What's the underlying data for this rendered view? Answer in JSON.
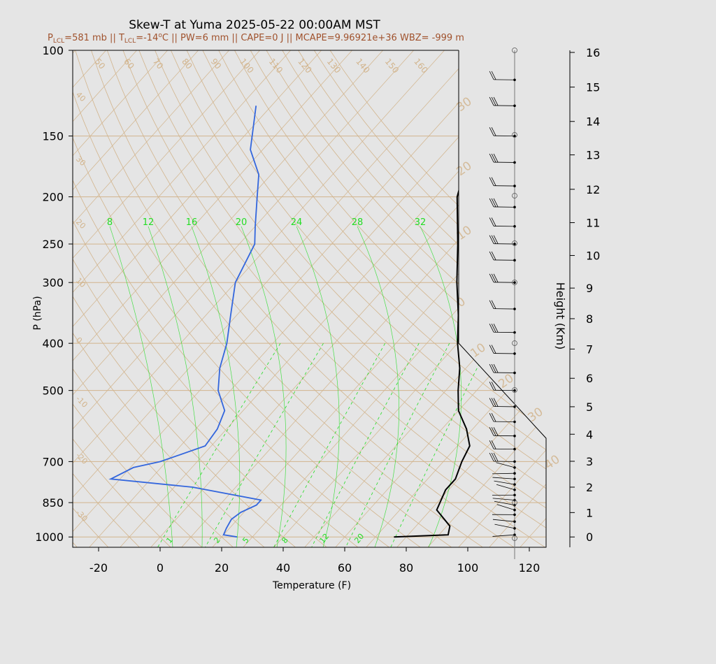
{
  "title": "Skew-T at Yuma 2025-05-22 00:00AM MST",
  "subtitle": {
    "plcl": "P",
    "plcl_sub": "LCL",
    "plcl_val": "=581 mb || ",
    "tlcl": "T",
    "tlcl_sub": "LCL",
    "tlcl_val": "=-14",
    "tlcl_sup": "o",
    "tlcl_unit": "C || ",
    "rest": "PW=6 mm || CAPE=0 J || MCAPE=9.96921e+36 WBZ= -999 m"
  },
  "colors": {
    "background": "#e5e5e5",
    "plot_bg": "#e5e5e5",
    "title": "#000000",
    "subtitle": "#a0522d",
    "temperature": "#000000",
    "dewpoint": "#3366dd",
    "mixing_ratio": "#22dd22",
    "isotherm": "#d2b48c",
    "adiabat": "#d2b48c",
    "isobar": "#d2b48c",
    "wind": "#000000"
  },
  "chart_data": {
    "type": "line",
    "title": "Skew-T at Yuma 2025-05-22 00:00AM MST",
    "xlabel": "Temperature (F)",
    "ylabel": "P (hPa)",
    "y2label": "Height (Km)",
    "xlim": [
      -28,
      125
    ],
    "ylim": [
      1050,
      100
    ],
    "x_ticks": [
      "-20",
      "0",
      "20",
      "40",
      "60",
      "80",
      "100",
      "120"
    ],
    "x_tick_values": [
      -20,
      0,
      20,
      40,
      60,
      80,
      100,
      120
    ],
    "y_ticks": [
      "100",
      "150",
      "200",
      "250",
      "300",
      "400",
      "500",
      "700",
      "850",
      "1000"
    ],
    "y_tick_values": [
      100,
      150,
      200,
      250,
      300,
      400,
      500,
      700,
      850,
      1000
    ],
    "height_ticks": [
      "0",
      "1",
      "2",
      "3",
      "4",
      "5",
      "6",
      "7",
      "8",
      "9",
      "10",
      "11",
      "12",
      "13",
      "14",
      "15",
      "16"
    ],
    "height_tick_values": [
      0,
      1,
      2,
      3,
      4,
      5,
      6,
      7,
      8,
      9,
      10,
      11,
      12,
      13,
      14,
      15,
      16
    ],
    "height_pressures": [
      1000,
      891,
      790,
      699,
      615,
      540,
      472,
      411,
      356,
      308,
      264,
      226,
      193,
      164,
      140,
      119,
      101
    ],
    "isotherm_labels": [
      "50",
      "60",
      "70",
      "80",
      "90",
      "100",
      "110",
      "120",
      "130",
      "140",
      "150",
      "160"
    ],
    "adiabat_labels_left": [
      "40",
      "30",
      "20",
      "10",
      "0",
      "-10",
      "-20",
      "-30"
    ],
    "adiabat_labels_right": [
      "30",
      "20",
      "10",
      "0",
      "10",
      "20",
      "30",
      "40"
    ],
    "mixing_ratio_top_labels": [
      "8",
      "12",
      "16",
      "20",
      "24",
      "28",
      "32"
    ],
    "mixing_ratio_bottom_labels": [
      "1",
      "2",
      "5",
      "8",
      "12",
      "20"
    ],
    "series": [
      {
        "name": "Temperature",
        "points": [
          {
            "p": 1000,
            "x": 76
          },
          {
            "p": 990,
            "x": 93
          },
          {
            "p": 950,
            "x": 91
          },
          {
            "p": 880,
            "x": 82
          },
          {
            "p": 800,
            "x": 79
          },
          {
            "p": 760,
            "x": 79
          },
          {
            "p": 700,
            "x": 76
          },
          {
            "p": 650,
            "x": 74
          },
          {
            "p": 600,
            "x": 68
          },
          {
            "p": 550,
            "x": 60
          },
          {
            "p": 500,
            "x": 54
          },
          {
            "p": 450,
            "x": 48
          },
          {
            "p": 400,
            "x": 40
          },
          {
            "p": 350,
            "x": 32
          },
          {
            "p": 300,
            "x": 22
          },
          {
            "p": 250,
            "x": 11
          },
          {
            "p": 200,
            "x": -3
          },
          {
            "p": 170,
            "x": -10
          },
          {
            "p": 150,
            "x": -16
          },
          {
            "p": 130,
            "x": -22
          },
          {
            "p": 100,
            "x": -37
          }
        ]
      },
      {
        "name": "Dewpoint",
        "points": [
          {
            "p": 1000,
            "x": 25
          },
          {
            "p": 990,
            "x": 20
          },
          {
            "p": 960,
            "x": 19
          },
          {
            "p": 920,
            "x": 18
          },
          {
            "p": 890,
            "x": 19
          },
          {
            "p": 860,
            "x": 22
          },
          {
            "p": 840,
            "x": 22
          },
          {
            "p": 790,
            "x": -4
          },
          {
            "p": 760,
            "x": -33
          },
          {
            "p": 720,
            "x": -29
          },
          {
            "p": 700,
            "x": -22
          },
          {
            "p": 650,
            "x": -12
          },
          {
            "p": 600,
            "x": -13
          },
          {
            "p": 550,
            "x": -16
          },
          {
            "p": 500,
            "x": -24
          },
          {
            "p": 450,
            "x": -30
          },
          {
            "p": 400,
            "x": -35
          },
          {
            "p": 350,
            "x": -42
          },
          {
            "p": 300,
            "x": -50
          },
          {
            "p": 250,
            "x": -55
          },
          {
            "p": 230,
            "x": -60
          },
          {
            "p": 200,
            "x": -68
          },
          {
            "p": 180,
            "x": -74
          },
          {
            "p": 160,
            "x": -84
          },
          {
            "p": 130,
            "x": -95
          }
        ]
      }
    ],
    "wind_barbs_pressures": [
      990,
      960,
      930,
      900,
      880,
      860,
      840,
      820,
      800,
      780,
      760,
      740,
      720,
      700,
      660,
      620,
      580,
      540,
      500,
      460,
      420,
      380,
      340,
      300,
      270,
      250,
      230,
      210,
      190,
      170,
      150,
      130,
      115
    ]
  }
}
